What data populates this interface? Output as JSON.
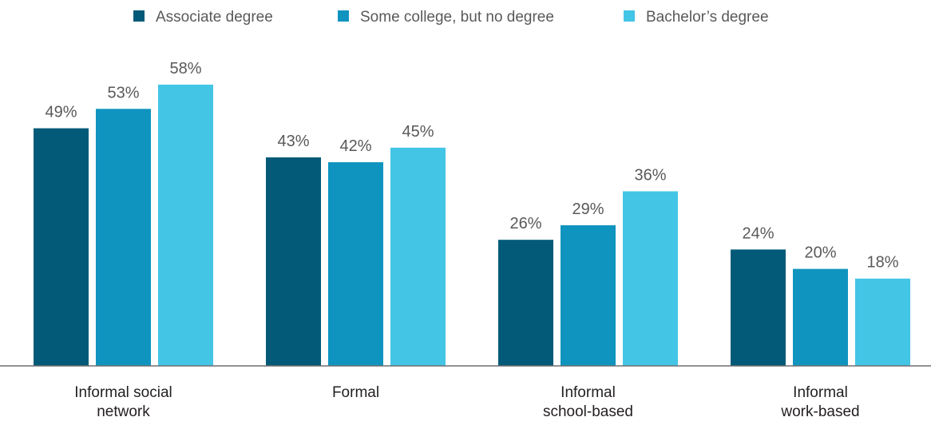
{
  "chart_data": {
    "type": "bar",
    "title": "",
    "xlabel": "",
    "ylabel": "",
    "categories": [
      [
        "Informal social",
        "network"
      ],
      [
        "Formal"
      ],
      [
        "Informal",
        "school-based"
      ],
      [
        "Informal",
        "work-based"
      ]
    ],
    "series": [
      {
        "name": "Associate degree",
        "values": [
          49,
          43,
          26,
          24
        ],
        "color": "#035a78"
      },
      {
        "name": "Some college, but no degree",
        "values": [
          53,
          42,
          29,
          20
        ],
        "color": "#0f94bf"
      },
      {
        "name": "Bachelor’s degree",
        "values": [
          58,
          45,
          36,
          18
        ],
        "color": "#43c5e5"
      }
    ],
    "value_suffix": "%",
    "ylim": [
      0,
      60
    ],
    "grid": false,
    "legend_position": "top-center"
  }
}
